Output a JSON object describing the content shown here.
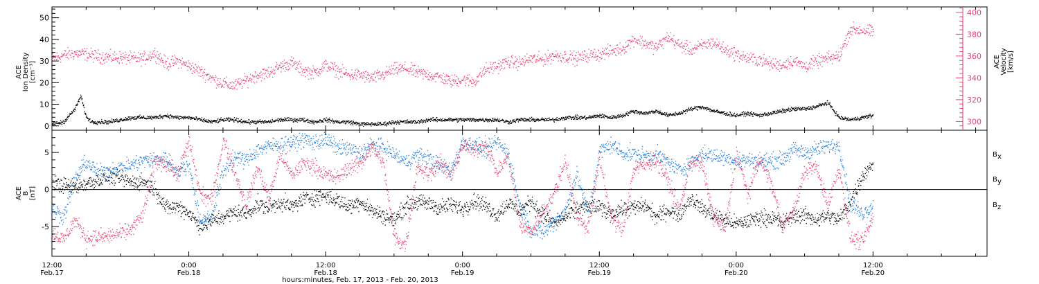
{
  "figure": {
    "xlabel": "hours:minutes, Feb. 17, 2013 - Feb. 20, 2013",
    "x_tick_labels": [
      {
        "time": "12:00",
        "date": "Feb.17",
        "hour": 0
      },
      {
        "time": "0:00",
        "date": "Feb.18",
        "hour": 12
      },
      {
        "time": "12:00",
        "date": "Feb.18",
        "hour": 24
      },
      {
        "time": "0:00",
        "date": "Feb.19",
        "hour": 36
      },
      {
        "time": "12:00",
        "date": "Feb.19",
        "hour": 48
      },
      {
        "time": "0:00",
        "date": "Feb.20",
        "hour": 60
      },
      {
        "time": "12:00",
        "date": "Feb.20",
        "hour": 72
      }
    ]
  },
  "colors": {
    "axis": "#000000",
    "density": "#000000",
    "velocity": "#e8416f",
    "bx": "#000000",
    "by": "#1f7fe0",
    "bz": "#e8416f"
  },
  "chart_data": [
    {
      "type": "scatter",
      "title": "",
      "ylabel_left": [
        "ACE",
        "Ion Density",
        "[cm⁻³]"
      ],
      "ylabel_right": [
        "ACE",
        "Velocity",
        "[km/s]"
      ],
      "xlim": [
        0,
        82
      ],
      "ylim_left": [
        -2,
        55
      ],
      "ylim_right": [
        292,
        405
      ],
      "yticks_left": [
        0,
        10,
        20,
        30,
        40,
        50
      ],
      "yticks_right": [
        300,
        320,
        340,
        360,
        380,
        400
      ],
      "series": [
        {
          "axis": "left",
          "x": [
            0,
            1,
            2,
            2.5,
            3,
            3.5,
            4,
            5,
            6,
            7,
            8,
            9,
            10,
            11,
            12,
            13,
            14,
            15,
            16,
            17,
            18,
            19,
            20,
            21,
            22,
            23,
            24,
            25,
            26,
            27,
            28,
            29,
            30,
            31,
            32,
            33,
            34,
            35,
            36,
            37,
            38,
            39,
            40,
            41,
            42,
            43,
            44,
            45,
            46,
            47,
            48,
            49,
            50,
            51,
            52,
            53,
            54,
            55,
            56,
            57,
            58,
            59,
            60,
            61,
            62,
            63,
            64,
            65,
            66,
            67,
            68,
            69,
            70,
            71,
            72
          ],
          "values": [
            1,
            2,
            8,
            14,
            4,
            2,
            2,
            2,
            3,
            4,
            4,
            4,
            5,
            4,
            4,
            3,
            2,
            3,
            3,
            2,
            2,
            2,
            3,
            3,
            3,
            2,
            3,
            2,
            2,
            1,
            1,
            1,
            2,
            2,
            2,
            3,
            3,
            3,
            3,
            3,
            3,
            3,
            2,
            3,
            3,
            3,
            3,
            4,
            4,
            4,
            5,
            4,
            5,
            7,
            6,
            7,
            5,
            6,
            8,
            9,
            7,
            6,
            5,
            6,
            5,
            6,
            7,
            8,
            8,
            9,
            11,
            4,
            3,
            4,
            5
          ]
        },
        {
          "axis": "right",
          "x": [
            0,
            1,
            2,
            3,
            4,
            5,
            6,
            7,
            8,
            9,
            10,
            11,
            12,
            13,
            14,
            15,
            16,
            17,
            18,
            19,
            20,
            21,
            22,
            23,
            24,
            25,
            26,
            27,
            28,
            29,
            30,
            31,
            32,
            33,
            34,
            35,
            36,
            37,
            38,
            39,
            40,
            41,
            42,
            43,
            44,
            45,
            46,
            47,
            48,
            49,
            50,
            51,
            52,
            53,
            54,
            55,
            56,
            57,
            58,
            59,
            60,
            61,
            62,
            63,
            64,
            65,
            66,
            67,
            68,
            69,
            70,
            71,
            72
          ],
          "values": [
            358,
            361,
            363,
            362,
            360,
            359,
            359,
            358,
            358,
            363,
            353,
            356,
            351,
            346,
            340,
            335,
            333,
            338,
            343,
            345,
            351,
            354,
            347,
            345,
            352,
            347,
            343,
            343,
            340,
            343,
            348,
            349,
            345,
            343,
            341,
            337,
            339,
            337,
            348,
            351,
            355,
            354,
            358,
            357,
            361,
            360,
            358,
            361,
            362,
            365,
            367,
            376,
            372,
            368,
            378,
            370,
            366,
            370,
            373,
            366,
            362,
            358,
            357,
            353,
            352,
            356,
            351,
            355,
            358,
            360,
            385,
            384,
            382
          ]
        }
      ]
    },
    {
      "type": "scatter",
      "title": "",
      "ylabel_left": [
        "ACE",
        "B",
        "[nT]"
      ],
      "xlim": [
        0,
        82
      ],
      "ylim": [
        -9,
        8
      ],
      "yticks": [
        -5,
        0,
        5
      ],
      "zero_line": true,
      "series": [
        {
          "name": "Bx",
          "x": [
            0,
            1,
            2,
            3,
            4,
            5,
            6,
            7,
            8,
            9,
            10,
            11,
            12,
            13,
            14,
            15,
            16,
            17,
            18,
            19,
            20,
            21,
            22,
            23,
            24,
            25,
            26,
            27,
            28,
            29,
            30,
            31,
            32,
            33,
            34,
            35,
            36,
            37,
            38,
            39,
            40,
            41,
            42,
            43,
            44,
            45,
            46,
            47,
            48,
            49,
            50,
            51,
            52,
            53,
            54,
            55,
            56,
            57,
            58,
            59,
            60,
            61,
            62,
            63,
            64,
            65,
            66,
            67,
            68,
            69,
            70,
            71,
            72
          ],
          "values": [
            1,
            0.6,
            0.4,
            0.9,
            1.3,
            1.8,
            1.6,
            1.0,
            1.2,
            0.1,
            -2.5,
            -2.2,
            -3.1,
            -4.9,
            -4.2,
            -3.6,
            -3.0,
            -3.2,
            -2.0,
            -2.4,
            -1.6,
            -2.3,
            -1.2,
            -1.0,
            -0.8,
            -1.4,
            -2.3,
            -1.5,
            -2.8,
            -3.4,
            -4.2,
            -2.1,
            -1.6,
            -1.9,
            -2.4,
            -2.0,
            -2.5,
            -1.4,
            -2.1,
            -3.4,
            -1.7,
            -3.0,
            -1.5,
            -3.4,
            -4.4,
            -3.7,
            -2.5,
            -2.2,
            -2.4,
            -3.2,
            -2.6,
            -2.4,
            -2.1,
            -3.7,
            -2.7,
            -3.3,
            -1.1,
            -2.5,
            -3.4,
            -4.0,
            -4.6,
            -4.2,
            -3.7,
            -3.7,
            -4.5,
            -3.4,
            -3.4,
            -4.0,
            -3.5,
            -4.0,
            -1.6,
            1.8,
            3.8
          ]
        },
        {
          "name": "By",
          "x": [
            0,
            1,
            2,
            3,
            4,
            5,
            6,
            7,
            8,
            9,
            10,
            11,
            12,
            13,
            14,
            15,
            16,
            17,
            18,
            19,
            20,
            21,
            22,
            23,
            24,
            25,
            26,
            27,
            28,
            29,
            30,
            31,
            32,
            33,
            34,
            35,
            36,
            37,
            38,
            39,
            40,
            41,
            42,
            43,
            44,
            45,
            46,
            47,
            48,
            49,
            50,
            51,
            52,
            53,
            54,
            55,
            56,
            57,
            58,
            59,
            60,
            61,
            62,
            63,
            64,
            65,
            66,
            67,
            68,
            69,
            70,
            71,
            72
          ],
          "values": [
            -2.5,
            -3.6,
            1.5,
            3.8,
            2.3,
            2.6,
            3.0,
            3.4,
            4.0,
            4.1,
            4.3,
            2.4,
            3.5,
            -4.4,
            -3.5,
            2.5,
            4.4,
            4.0,
            5.4,
            5.9,
            6.2,
            6.3,
            6.8,
            6.4,
            6.7,
            5.7,
            5.5,
            4.9,
            6.1,
            5.7,
            4.8,
            3.7,
            4.7,
            4.3,
            3.2,
            2.7,
            6.4,
            6.1,
            5.3,
            6.5,
            4.8,
            -2.2,
            -5.4,
            -5.8,
            -4.4,
            -2.8,
            2.2,
            -3.5,
            5.2,
            6.1,
            5.0,
            4.8,
            4.6,
            4.7,
            3.8,
            2.6,
            3.6,
            4.9,
            4.6,
            4.3,
            4.0,
            4.0,
            3.8,
            3.9,
            4.1,
            5.4,
            5.0,
            5.5,
            5.9,
            6.0,
            -1.8,
            -3.2,
            -2.1
          ]
        },
        {
          "name": "Bz",
          "x": [
            0,
            1,
            2,
            3,
            4,
            5,
            6,
            7,
            8,
            9,
            10,
            11,
            12,
            13,
            14,
            15,
            16,
            17,
            18,
            19,
            20,
            21,
            22,
            23,
            24,
            25,
            26,
            27,
            28,
            29,
            30,
            31,
            32,
            33,
            34,
            35,
            36,
            37,
            38,
            39,
            40,
            41,
            42,
            43,
            44,
            45,
            46,
            47,
            48,
            49,
            50,
            51,
            52,
            53,
            54,
            55,
            56,
            57,
            58,
            59,
            60,
            61,
            62,
            63,
            64,
            65,
            66,
            67,
            68,
            69,
            70,
            71,
            72
          ],
          "values": [
            -5.8,
            -6.7,
            -4.1,
            -6.5,
            -6.4,
            -6.2,
            -5.9,
            -5.2,
            -3.2,
            3.8,
            3.6,
            2.0,
            6.6,
            -0.7,
            -1.3,
            6.7,
            2.5,
            -2.1,
            3.1,
            -1.2,
            4.9,
            1.9,
            3.6,
            3.2,
            2.0,
            1.6,
            3.0,
            3.5,
            5.8,
            3.8,
            -6.5,
            -7.4,
            3.2,
            2.1,
            3.7,
            1.8,
            6.1,
            5.2,
            6.4,
            2.3,
            4.5,
            -4.7,
            -5.7,
            -2.9,
            -0.6,
            4.1,
            -3.5,
            -5.2,
            4.3,
            -3.6,
            -5.6,
            2.8,
            3.4,
            4.1,
            1.3,
            -2.9,
            4.1,
            3.3,
            -3.7,
            -5.4,
            5.1,
            -0.7,
            4.3,
            1.2,
            -4.8,
            -3.1,
            2.6,
            3.1,
            -2.0,
            3.0,
            -6.5,
            -7.1,
            -3.8
          ]
        }
      ],
      "legend": [
        "B",
        "B",
        "B"
      ],
      "legend_subscripts": [
        "x",
        "y",
        "z"
      ],
      "legend_placement": "right"
    }
  ]
}
